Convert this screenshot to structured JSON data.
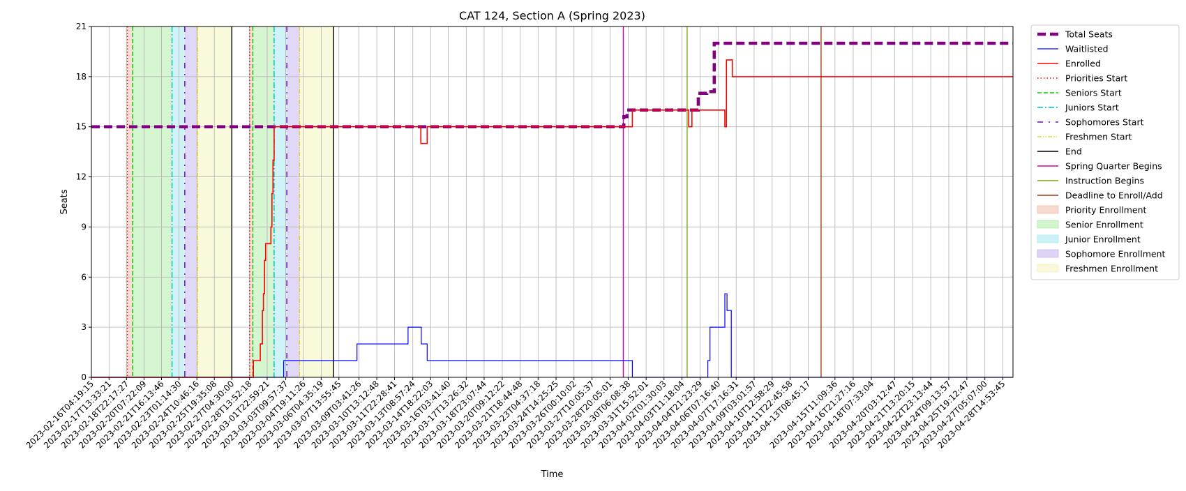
{
  "chart_data": {
    "type": "line",
    "title": "CAT 124, Section A (Spring 2023)",
    "xlabel": "Time",
    "ylabel": "Seats",
    "ylim": [
      0,
      21
    ],
    "y_ticks": [
      0,
      3,
      6,
      9,
      12,
      15,
      18,
      21
    ],
    "xlim": [
      "2023-02-16T04:19:15",
      "2023-04-29T10:00:00"
    ],
    "x_tick_labels": [
      "2023-02-16T04:19:15",
      "2023-02-17T13:33:21",
      "2023-02-18T22:17:27",
      "2023-02-20T07:22:09",
      "2023-02-21T16:13:46",
      "2023-02-23T01:14:30",
      "2023-02-24T10:46:16",
      "2023-02-25T19:35:08",
      "2023-02-27T04:30:00",
      "2023-02-28T13:52:18",
      "2023-03-01T22:59:21",
      "2023-03-03T09:57:37",
      "2023-03-04T19:11:26",
      "2023-03-06T04:35:19",
      "2023-03-07T13:55:45",
      "2023-03-09T03:41:26",
      "2023-03-10T13:12:48",
      "2023-03-11T22:28:41",
      "2023-03-13T08:57:24",
      "2023-03-14T18:22:03",
      "2023-03-16T03:41:40",
      "2023-03-17T13:26:32",
      "2023-03-18T23:07:44",
      "2023-03-20T09:12:22",
      "2023-03-21T18:44:48",
      "2023-03-23T04:37:18",
      "2023-03-24T14:25:25",
      "2023-03-26T00:10:02",
      "2023-03-27T10:05:37",
      "2023-03-28T20:05:01",
      "2023-03-30T06:08:38",
      "2023-03-31T15:52:01",
      "2023-04-02T01:30:03",
      "2023-04-03T11:18:04",
      "2023-04-04T21:23:29",
      "2023-04-06T07:16:40",
      "2023-04-07T17:16:31",
      "2023-04-09T03:01:57",
      "2023-04-10T12:58:29",
      "2023-04-11T22:45:58",
      "2023-04-13T08:45:17",
      "2023-04-15T11:09:36",
      "2023-04-16T21:27:16",
      "2023-04-18T07:33:04",
      "2023-04-20T03:12:47",
      "2023-04-21T13:20:15",
      "2023-04-22T23:13:44",
      "2023-04-24T09:13:57",
      "2023-04-25T19:12:47",
      "2023-04-27T05:07:00",
      "2023-04-28T14:53:45"
    ],
    "grid": true,
    "legend_position": "outside right",
    "series": [
      {
        "name": "Total Seats",
        "color": "#800080",
        "style": "dashed-thick",
        "points": [
          [
            "2023-02-16T04:19:15",
            15
          ],
          [
            "2023-03-29T22:00:00",
            15
          ],
          [
            "2023-03-29T22:00:00",
            15.6
          ],
          [
            "2023-03-30T04:00:00",
            15.6
          ],
          [
            "2023-03-30T04:00:00",
            16
          ],
          [
            "2023-04-04T18:00:00",
            16
          ],
          [
            "2023-04-04T18:00:00",
            17
          ],
          [
            "2023-04-05T10:00:00",
            17
          ],
          [
            "2023-04-05T10:00:00",
            17.1
          ],
          [
            "2023-04-06T00:00:00",
            17.1
          ],
          [
            "2023-04-06T00:00:00",
            20
          ],
          [
            "2023-04-29T10:00:00",
            20
          ]
        ]
      },
      {
        "name": "Waitlisted",
        "color": "#0000ff",
        "style": "solid-thin",
        "points": [
          [
            "2023-02-16T04:19:15",
            0
          ],
          [
            "2023-03-03T06:00:00",
            0
          ],
          [
            "2023-03-03T06:00:00",
            1
          ],
          [
            "2023-03-09T00:00:00",
            1
          ],
          [
            "2023-03-09T00:00:00",
            2
          ],
          [
            "2023-03-13T00:00:00",
            2
          ],
          [
            "2023-03-13T00:00:00",
            3
          ],
          [
            "2023-03-14T01:00:00",
            3
          ],
          [
            "2023-03-14T01:00:00",
            2
          ],
          [
            "2023-03-14T12:00:00",
            2
          ],
          [
            "2023-03-14T12:00:00",
            1
          ],
          [
            "2023-03-30T14:00:00",
            1
          ],
          [
            "2023-03-30T14:00:00",
            0
          ],
          [
            "2023-04-05T12:00:00",
            0
          ],
          [
            "2023-04-05T12:00:00",
            1
          ],
          [
            "2023-04-05T16:00:00",
            1
          ],
          [
            "2023-04-05T16:00:00",
            3
          ],
          [
            "2023-04-06T20:00:00",
            3
          ],
          [
            "2023-04-06T20:00:00",
            5
          ],
          [
            "2023-04-07T00:00:00",
            5
          ],
          [
            "2023-04-07T00:00:00",
            4
          ],
          [
            "2023-04-07T08:00:00",
            4
          ],
          [
            "2023-04-07T08:00:00",
            0
          ],
          [
            "2023-04-29T10:00:00",
            0
          ]
        ]
      },
      {
        "name": "Enrolled",
        "color": "#ff0000",
        "style": "solid",
        "points": [
          [
            "2023-02-16T04:19:15",
            0
          ],
          [
            "2023-02-28T21:00:00",
            0
          ],
          [
            "2023-02-28T21:00:00",
            1
          ],
          [
            "2023-03-01T10:00:00",
            1
          ],
          [
            "2023-03-01T10:00:00",
            2
          ],
          [
            "2023-03-01T14:00:00",
            2
          ],
          [
            "2023-03-01T14:00:00",
            4
          ],
          [
            "2023-03-01T16:00:00",
            4
          ],
          [
            "2023-03-01T16:00:00",
            5
          ],
          [
            "2023-03-01T18:00:00",
            5
          ],
          [
            "2023-03-01T18:00:00",
            7
          ],
          [
            "2023-03-01T20:00:00",
            7
          ],
          [
            "2023-03-01T20:00:00",
            8
          ],
          [
            "2023-03-02T06:00:00",
            8
          ],
          [
            "2023-03-02T06:00:00",
            9
          ],
          [
            "2023-03-02T08:00:00",
            9
          ],
          [
            "2023-03-02T08:00:00",
            11
          ],
          [
            "2023-03-02T10:00:00",
            11
          ],
          [
            "2023-03-02T10:00:00",
            13
          ],
          [
            "2023-03-02T12:00:00",
            13
          ],
          [
            "2023-03-02T12:00:00",
            15
          ],
          [
            "2023-03-14T00:00:00",
            15
          ],
          [
            "2023-03-14T00:00:00",
            14
          ],
          [
            "2023-03-14T12:00:00",
            14
          ],
          [
            "2023-03-14T12:00:00",
            15
          ],
          [
            "2023-03-30T14:00:00",
            15
          ],
          [
            "2023-03-30T14:00:00",
            16
          ],
          [
            "2023-04-04T00:00:00",
            16
          ],
          [
            "2023-04-04T00:00:00",
            15
          ],
          [
            "2023-04-04T06:00:00",
            15
          ],
          [
            "2023-04-04T06:00:00",
            16
          ],
          [
            "2023-04-06T20:00:00",
            16
          ],
          [
            "2023-04-06T20:00:00",
            15
          ],
          [
            "2023-04-06T23:00:00",
            15
          ],
          [
            "2023-04-06T23:00:00",
            19
          ],
          [
            "2023-04-07T10:00:00",
            19
          ],
          [
            "2023-04-07T10:00:00",
            18
          ],
          [
            "2023-04-29T10:00:00",
            18
          ]
        ]
      }
    ],
    "shaded_regions": [
      {
        "name": "Priority Enrollment",
        "color": "#f4c0b0",
        "spans": [
          [
            "2023-02-19T00:00:00",
            "2023-02-19T10:00:00"
          ],
          [
            "2023-02-28T14:00:00",
            "2023-02-28T20:00:00"
          ]
        ]
      },
      {
        "name": "Senior Enrollment",
        "color": "#b5ecab",
        "spans": [
          [
            "2023-02-19T10:00:00",
            "2023-02-22T12:00:00"
          ],
          [
            "2023-02-28T20:00:00",
            "2023-03-02T12:00:00"
          ]
        ]
      },
      {
        "name": "Junior Enrollment",
        "color": "#a9eaf0",
        "spans": [
          [
            "2023-02-22T12:00:00",
            "2023-02-23T12:00:00"
          ],
          [
            "2023-03-02T12:00:00",
            "2023-03-03T12:00:00"
          ]
        ]
      },
      {
        "name": "Sophomore Enrollment",
        "color": "#c9b6ee",
        "spans": [
          [
            "2023-02-23T12:00:00",
            "2023-02-24T12:00:00"
          ],
          [
            "2023-03-03T12:00:00",
            "2023-03-04T12:00:00"
          ]
        ]
      },
      {
        "name": "Freshmen Enrollment",
        "color": "#f4f4c0",
        "spans": [
          [
            "2023-02-24T12:00:00",
            "2023-02-27T04:30:00"
          ],
          [
            "2023-03-04T12:00:00",
            "2023-03-07T04:00:00"
          ]
        ]
      }
    ],
    "event_lines": [
      {
        "name": "Priorities Start",
        "color": "#ff0000",
        "style": "dotted",
        "times": [
          "2023-02-19T00:00:00",
          "2023-02-28T14:00:00"
        ]
      },
      {
        "name": "Seniors Start",
        "color": "#00cc00",
        "style": "dashed",
        "times": [
          "2023-02-19T10:00:00",
          "2023-02-28T20:00:00"
        ]
      },
      {
        "name": "Juniors Start",
        "color": "#00bfbf",
        "style": "dashdot",
        "times": [
          "2023-02-22T12:00:00",
          "2023-03-02T12:00:00"
        ]
      },
      {
        "name": "Sophomores Start",
        "color": "#6a0dad",
        "style": "loose-dashdot",
        "times": [
          "2023-02-23T12:00:00",
          "2023-03-03T12:00:00"
        ]
      },
      {
        "name": "Freshmen Start",
        "color": "#e6d200",
        "style": "dashdotdot",
        "times": [
          "2023-02-24T12:00:00",
          "2023-03-04T12:00:00"
        ]
      },
      {
        "name": "End",
        "color": "#000000",
        "style": "solid",
        "times": [
          "2023-02-27T04:30:00",
          "2023-03-07T04:00:00"
        ]
      },
      {
        "name": "Spring Quarter Begins",
        "color": "#d10097",
        "style": "solid",
        "times": [
          "2023-03-29T21:00:00"
        ]
      },
      {
        "name": "Instruction Begins",
        "color": "#7fa614",
        "style": "solid",
        "times": [
          "2023-04-03T21:00:00"
        ]
      },
      {
        "name": "Deadline to Enroll/Add",
        "color": "#a0401a",
        "style": "solid",
        "times": [
          "2023-04-14T09:00:00"
        ]
      }
    ],
    "legend": [
      {
        "label": "Total Seats",
        "kind": "line",
        "color": "#800080",
        "style": "dashed-thick"
      },
      {
        "label": "Waitlisted",
        "kind": "line",
        "color": "#0000ff",
        "style": "solid-thin"
      },
      {
        "label": "Enrolled",
        "kind": "line",
        "color": "#ff0000",
        "style": "solid"
      },
      {
        "label": "Priorities Start",
        "kind": "line",
        "color": "#ff0000",
        "style": "dotted"
      },
      {
        "label": "Seniors Start",
        "kind": "line",
        "color": "#00cc00",
        "style": "dashed"
      },
      {
        "label": "Juniors Start",
        "kind": "line",
        "color": "#00bfbf",
        "style": "dashdot"
      },
      {
        "label": "Sophomores Start",
        "kind": "line",
        "color": "#6a0dad",
        "style": "loose-dashdot"
      },
      {
        "label": "Freshmen Start",
        "kind": "line",
        "color": "#e6d200",
        "style": "dashdotdot"
      },
      {
        "label": "End",
        "kind": "line",
        "color": "#000000",
        "style": "solid"
      },
      {
        "label": "Spring Quarter Begins",
        "kind": "line",
        "color": "#d10097",
        "style": "solid"
      },
      {
        "label": "Instruction Begins",
        "kind": "line",
        "color": "#7fa614",
        "style": "solid"
      },
      {
        "label": "Deadline to Enroll/Add",
        "kind": "line",
        "color": "#a0401a",
        "style": "solid"
      },
      {
        "label": "Priority Enrollment",
        "kind": "patch",
        "color": "#f4c0b0"
      },
      {
        "label": "Senior Enrollment",
        "kind": "patch",
        "color": "#b5ecab"
      },
      {
        "label": "Junior Enrollment",
        "kind": "patch",
        "color": "#a9eaf0"
      },
      {
        "label": "Sophomore Enrollment",
        "kind": "patch",
        "color": "#c9b6ee"
      },
      {
        "label": "Freshmen Enrollment",
        "kind": "patch",
        "color": "#f4f4c0"
      }
    ]
  }
}
